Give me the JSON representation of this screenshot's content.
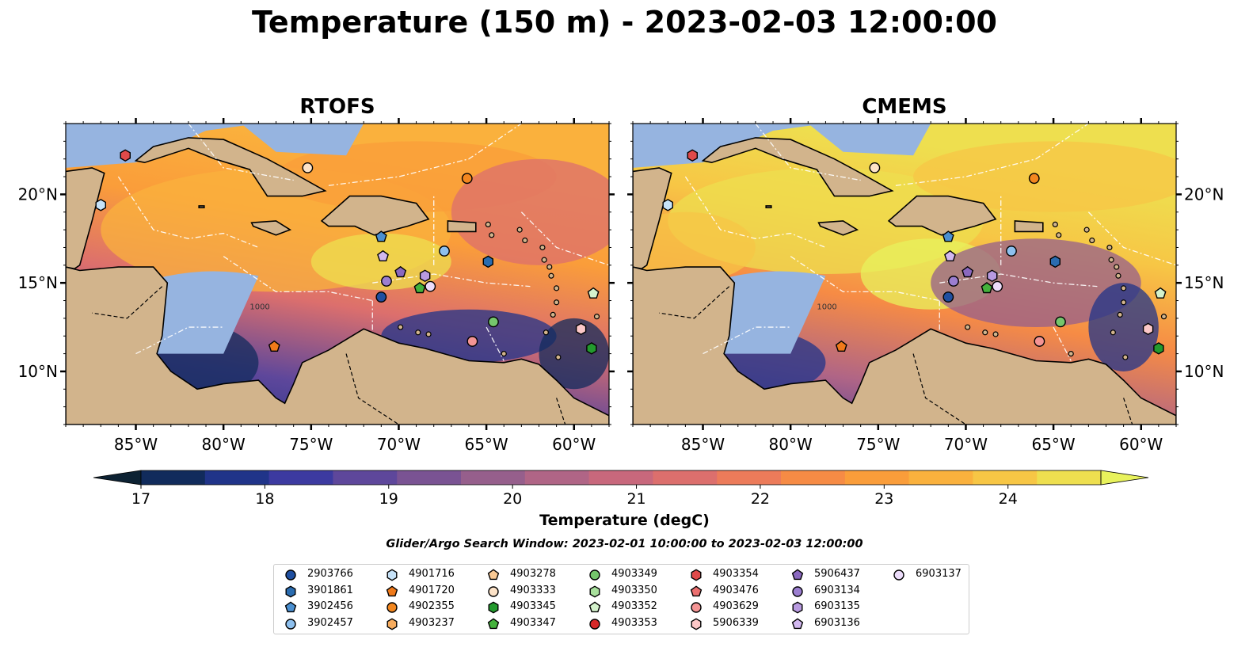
{
  "figure": {
    "title": "Temperature (150 m) - 2023-02-03 12:00:00",
    "search_window": "Glider/Argo Search Window: 2023-02-01 10:00:00 to 2023-02-03 12:00:00"
  },
  "colors": {
    "land": "#d2b48c",
    "shallow_water": "#96b4e0",
    "coast": "#000000",
    "eez_lines": "#ffffff",
    "colormap": [
      "#0d2233",
      "#112b5c",
      "#203489",
      "#3c3aa0",
      "#5e479b",
      "#7a5393",
      "#965f8c",
      "#b06586",
      "#c8687c",
      "#dc6f6d",
      "#ec7b5a",
      "#f68b45",
      "#fa9d3a",
      "#fab13d",
      "#f7c645",
      "#eedf4f",
      "#e8f25c"
    ]
  },
  "chart_data": [
    {
      "type": "heatmap",
      "title": "RTOFS",
      "lon_range": [
        -89,
        -58
      ],
      "lat_range": [
        7,
        24
      ],
      "x_ticks": [
        "85°W",
        "80°W",
        "75°W",
        "70°W",
        "65°W",
        "60°W"
      ],
      "x_tick_values": [
        -85,
        -80,
        -75,
        -70,
        -65,
        -60
      ],
      "y_ticks": [
        "10°N",
        "15°N",
        "20°N"
      ],
      "y_tick_values": [
        10,
        15,
        20
      ],
      "y_axis_side": "left",
      "contour_label": "1000"
    },
    {
      "type": "heatmap",
      "title": "CMEMS",
      "lon_range": [
        -89,
        -58
      ],
      "lat_range": [
        7,
        24
      ],
      "x_ticks": [
        "85°W",
        "80°W",
        "75°W",
        "70°W",
        "65°W",
        "60°W"
      ],
      "x_tick_values": [
        -85,
        -80,
        -75,
        -70,
        -65,
        -60
      ],
      "y_ticks": [
        "10°N",
        "15°N",
        "20°N"
      ],
      "y_tick_values": [
        10,
        15,
        20
      ],
      "y_axis_side": "right",
      "contour_label": "1000"
    }
  ],
  "colorbar": {
    "label": "Temperature (degC)",
    "min": 16.75,
    "max": 24.75,
    "step": 0.5,
    "ticks": [
      "17",
      "18",
      "19",
      "20",
      "21",
      "22",
      "23",
      "24"
    ],
    "tick_values": [
      17,
      18,
      19,
      20,
      21,
      22,
      23,
      24
    ],
    "extend": "both"
  },
  "legend": {
    "entries": [
      {
        "label": "2903766",
        "marker": "circle",
        "color": "#1f4fa0"
      },
      {
        "label": "3901861",
        "marker": "hexagon",
        "color": "#2a6cb0"
      },
      {
        "label": "3902456",
        "marker": "pentagon",
        "color": "#4a8fd0"
      },
      {
        "label": "3902457",
        "marker": "circle",
        "color": "#8ec0ee"
      },
      {
        "label": "4901716",
        "marker": "hexagon",
        "color": "#c6e2f8"
      },
      {
        "label": "4901720",
        "marker": "pentagon",
        "color": "#f07a1a"
      },
      {
        "label": "4902355",
        "marker": "circle",
        "color": "#f3871f"
      },
      {
        "label": "4903237",
        "marker": "hexagon",
        "color": "#f7ac5e"
      },
      {
        "label": "4903278",
        "marker": "pentagon",
        "color": "#f9c994"
      },
      {
        "label": "4903333",
        "marker": "circle",
        "color": "#fde3c8"
      },
      {
        "label": "4903345",
        "marker": "hexagon",
        "color": "#239a2e"
      },
      {
        "label": "4903347",
        "marker": "pentagon",
        "color": "#44b23c"
      },
      {
        "label": "4903349",
        "marker": "circle",
        "color": "#75c66c"
      },
      {
        "label": "4903350",
        "marker": "hexagon",
        "color": "#a8e09c"
      },
      {
        "label": "4903352",
        "marker": "pentagon",
        "color": "#d4f2cc"
      },
      {
        "label": "4903353",
        "marker": "circle",
        "color": "#d62828"
      },
      {
        "label": "4903354",
        "marker": "hexagon",
        "color": "#e04a4a"
      },
      {
        "label": "4903476",
        "marker": "pentagon",
        "color": "#ec7070"
      },
      {
        "label": "4903629",
        "marker": "circle",
        "color": "#f49494"
      },
      {
        "label": "5906339",
        "marker": "hexagon",
        "color": "#fcc8c8"
      },
      {
        "label": "5906437",
        "marker": "pentagon",
        "color": "#8a68bf"
      },
      {
        "label": "6903134",
        "marker": "circle",
        "color": "#9b7ed0"
      },
      {
        "label": "6903135",
        "marker": "hexagon",
        "color": "#b89ae0"
      },
      {
        "label": "6903136",
        "marker": "pentagon",
        "color": "#d2b8f0"
      },
      {
        "label": "6903137",
        "marker": "circle",
        "color": "#ecdcfa"
      }
    ],
    "columns": 7,
    "rows": 4
  },
  "floats": [
    {
      "label": "4903354",
      "lon": -85.6,
      "lat": 22.2
    },
    {
      "label": "4901716",
      "lon": -87.0,
      "lat": 19.4
    },
    {
      "label": "4903333",
      "lon": -75.2,
      "lat": 21.5
    },
    {
      "label": "4902355",
      "lon": -66.1,
      "lat": 20.9
    },
    {
      "label": "3902456",
      "lon": -71.0,
      "lat": 17.6
    },
    {
      "label": "6903136",
      "lon": -70.9,
      "lat": 16.5
    },
    {
      "label": "3902457",
      "lon": -67.4,
      "lat": 16.8
    },
    {
      "label": "3901861",
      "lon": -64.9,
      "lat": 16.2
    },
    {
      "label": "5906437",
      "lon": -69.9,
      "lat": 15.6
    },
    {
      "label": "6903135",
      "lon": -68.5,
      "lat": 15.4
    },
    {
      "label": "6903134",
      "lon": -70.7,
      "lat": 15.1
    },
    {
      "label": "6903137",
      "lon": -68.2,
      "lat": 14.8
    },
    {
      "label": "4903352",
      "lon": -58.9,
      "lat": 14.4
    },
    {
      "label": "4903347",
      "lon": -68.8,
      "lat": 14.7
    },
    {
      "label": "2903766",
      "lon": -71.0,
      "lat": 14.2
    },
    {
      "label": "4903349",
      "lon": -64.6,
      "lat": 12.8
    },
    {
      "label": "5906339",
      "lon": -59.6,
      "lat": 12.4
    },
    {
      "label": "4903629",
      "lon": -65.8,
      "lat": 11.7
    },
    {
      "label": "4901720",
      "lon": -77.1,
      "lat": 11.4
    },
    {
      "label": "4903345",
      "lon": -59.0,
      "lat": 11.3
    }
  ]
}
